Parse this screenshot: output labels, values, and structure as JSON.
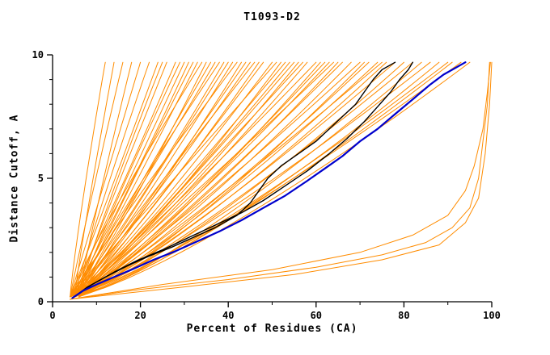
{
  "chart_data": {
    "type": "line",
    "title": "T1093-D2",
    "xlabel": "Percent of Residues (CA)",
    "ylabel": "Distance Cutoff, A",
    "xlim": [
      0,
      100
    ],
    "ylim": [
      0,
      10
    ],
    "x_ticks_major": [
      0,
      20,
      40,
      60,
      80,
      100
    ],
    "x_ticks_minor": [
      10,
      30,
      50,
      70,
      90
    ],
    "y_ticks_major": [
      0,
      5,
      10
    ],
    "y_ticks_minor": [
      1,
      2,
      3,
      4,
      6,
      7,
      8,
      9
    ],
    "grid": false,
    "legend": "none",
    "colors": {
      "models": "#FF8C00",
      "reference": "#000000",
      "best": "#0000CC",
      "axis": "#000000"
    },
    "series": [
      {
        "name": "orange-model-fan",
        "color": "#FF8C00",
        "width": 1,
        "generator": {
          "y_start": 0.2,
          "y_end": 9.7,
          "curves": [
            [
              12,
              1.15,
              4
            ],
            [
              14,
              1.1,
              5
            ],
            [
              16,
              1.05,
              4
            ],
            [
              18,
              1.1,
              6
            ],
            [
              20,
              1.0,
              4
            ],
            [
              22,
              1.08,
              5
            ],
            [
              24,
              0.98,
              4
            ],
            [
              25,
              1.12,
              6
            ],
            [
              26,
              1.02,
              5
            ],
            [
              28,
              0.95,
              4
            ],
            [
              29,
              1.1,
              6
            ],
            [
              30,
              1.0,
              5
            ],
            [
              31,
              0.92,
              4
            ],
            [
              32,
              1.06,
              6
            ],
            [
              33,
              0.97,
              5
            ],
            [
              34,
              1.1,
              4
            ],
            [
              35,
              0.9,
              5
            ],
            [
              36,
              1.04,
              6
            ],
            [
              37,
              0.95,
              4
            ],
            [
              38,
              1.08,
              5
            ],
            [
              39,
              0.9,
              4
            ],
            [
              40,
              1.0,
              6
            ],
            [
              41,
              0.93,
              5
            ],
            [
              42,
              1.05,
              4
            ],
            [
              43,
              0.88,
              5
            ],
            [
              44,
              0.98,
              6
            ],
            [
              45,
              0.9,
              4
            ],
            [
              46,
              1.02,
              5
            ],
            [
              47,
              0.86,
              4
            ],
            [
              48,
              0.96,
              6
            ],
            [
              50,
              0.9,
              5
            ],
            [
              51,
              1.0,
              4
            ],
            [
              52,
              0.85,
              5
            ],
            [
              53,
              0.95,
              6
            ],
            [
              54,
              0.88,
              4
            ],
            [
              55,
              0.92,
              5
            ],
            [
              56,
              0.84,
              4
            ],
            [
              57,
              0.96,
              6
            ],
            [
              58,
              0.87,
              5
            ],
            [
              60,
              0.92,
              4
            ],
            [
              61,
              0.83,
              5
            ],
            [
              62,
              0.9,
              6
            ],
            [
              63,
              0.85,
              4
            ],
            [
              64,
              0.95,
              5
            ],
            [
              65,
              0.82,
              4
            ],
            [
              66,
              0.9,
              6
            ],
            [
              68,
              0.84,
              5
            ],
            [
              70,
              0.88,
              4
            ],
            [
              71,
              0.8,
              5
            ],
            [
              72,
              0.86,
              6
            ],
            [
              74,
              0.82,
              4
            ],
            [
              75,
              0.9,
              5
            ],
            [
              76,
              0.8,
              4
            ],
            [
              78,
              0.85,
              5
            ],
            [
              80,
              0.78,
              4
            ],
            [
              82,
              0.84,
              5
            ],
            [
              84,
              0.8,
              6
            ],
            [
              86,
              0.83,
              4
            ],
            [
              88,
              0.78,
              5
            ],
            [
              90,
              0.82,
              5
            ],
            [
              91,
              0.8,
              5
            ],
            [
              93,
              0.82,
              4
            ],
            [
              95,
              0.79,
              5
            ]
          ]
        }
      },
      {
        "name": "orange-outlier-1",
        "color": "#FF8C00",
        "width": 1,
        "points": [
          [
            4,
            0.1
          ],
          [
            20,
            0.5
          ],
          [
            40,
            0.9
          ],
          [
            60,
            1.4
          ],
          [
            75,
            1.9
          ],
          [
            85,
            2.4
          ],
          [
            91,
            3.0
          ],
          [
            95,
            3.8
          ],
          [
            97,
            5.0
          ],
          [
            98,
            6.5
          ],
          [
            99,
            8.0
          ],
          [
            99.5,
            9.7
          ]
        ]
      },
      {
        "name": "orange-outlier-2",
        "color": "#FF8C00",
        "width": 1,
        "points": [
          [
            4,
            0.1
          ],
          [
            25,
            0.7
          ],
          [
            50,
            1.3
          ],
          [
            70,
            2.0
          ],
          [
            82,
            2.7
          ],
          [
            90,
            3.5
          ],
          [
            94,
            4.5
          ],
          [
            96,
            5.5
          ],
          [
            98,
            7.0
          ],
          [
            99,
            8.5
          ],
          [
            99.7,
            9.7
          ]
        ]
      },
      {
        "name": "orange-outlier-3",
        "color": "#FF8C00",
        "width": 1,
        "points": [
          [
            4,
            0.1
          ],
          [
            30,
            0.6
          ],
          [
            55,
            1.1
          ],
          [
            75,
            1.7
          ],
          [
            88,
            2.3
          ],
          [
            94,
            3.2
          ],
          [
            97,
            4.2
          ],
          [
            98.5,
            6.0
          ],
          [
            99.5,
            8.0
          ],
          [
            100,
            9.7
          ]
        ]
      },
      {
        "name": "black-model-1",
        "color": "#000000",
        "width": 1.4,
        "points": [
          [
            4.5,
            0.15
          ],
          [
            8,
            0.6
          ],
          [
            12,
            1.0
          ],
          [
            17,
            1.45
          ],
          [
            22,
            1.85
          ],
          [
            27,
            2.2
          ],
          [
            32,
            2.6
          ],
          [
            37,
            3.0
          ],
          [
            42,
            3.5
          ],
          [
            45,
            4.0
          ],
          [
            47,
            4.5
          ],
          [
            49,
            5.0
          ],
          [
            52,
            5.5
          ],
          [
            56,
            6.0
          ],
          [
            60,
            6.5
          ],
          [
            63,
            7.0
          ],
          [
            66,
            7.5
          ],
          [
            69,
            8.0
          ],
          [
            71,
            8.5
          ],
          [
            73,
            9.0
          ],
          [
            75,
            9.4
          ],
          [
            78,
            9.7
          ]
        ]
      },
      {
        "name": "black-model-2",
        "color": "#000000",
        "width": 1.4,
        "points": [
          [
            4.5,
            0.15
          ],
          [
            9,
            0.7
          ],
          [
            14,
            1.2
          ],
          [
            19,
            1.65
          ],
          [
            25,
            2.1
          ],
          [
            31,
            2.6
          ],
          [
            37,
            3.1
          ],
          [
            43,
            3.6
          ],
          [
            48,
            4.1
          ],
          [
            53,
            4.7
          ],
          [
            58,
            5.3
          ],
          [
            63,
            6.0
          ],
          [
            67,
            6.6
          ],
          [
            71,
            7.3
          ],
          [
            74,
            7.9
          ],
          [
            77,
            8.5
          ],
          [
            79,
            9.0
          ],
          [
            81,
            9.4
          ],
          [
            82,
            9.7
          ]
        ]
      },
      {
        "name": "blue-best-model",
        "color": "#0000CC",
        "width": 2.2,
        "points": [
          [
            4.5,
            0.15
          ],
          [
            7,
            0.45
          ],
          [
            10,
            0.7
          ],
          [
            14,
            1.0
          ],
          [
            18,
            1.3
          ],
          [
            23,
            1.7
          ],
          [
            28,
            2.05
          ],
          [
            33,
            2.45
          ],
          [
            38,
            2.85
          ],
          [
            43,
            3.3
          ],
          [
            48,
            3.8
          ],
          [
            53,
            4.3
          ],
          [
            58,
            4.9
          ],
          [
            62,
            5.4
          ],
          [
            66,
            5.9
          ],
          [
            70,
            6.5
          ],
          [
            74,
            7.0
          ],
          [
            78,
            7.6
          ],
          [
            82,
            8.2
          ],
          [
            86,
            8.8
          ],
          [
            89,
            9.2
          ],
          [
            92,
            9.5
          ],
          [
            94,
            9.7
          ]
        ]
      }
    ]
  }
}
